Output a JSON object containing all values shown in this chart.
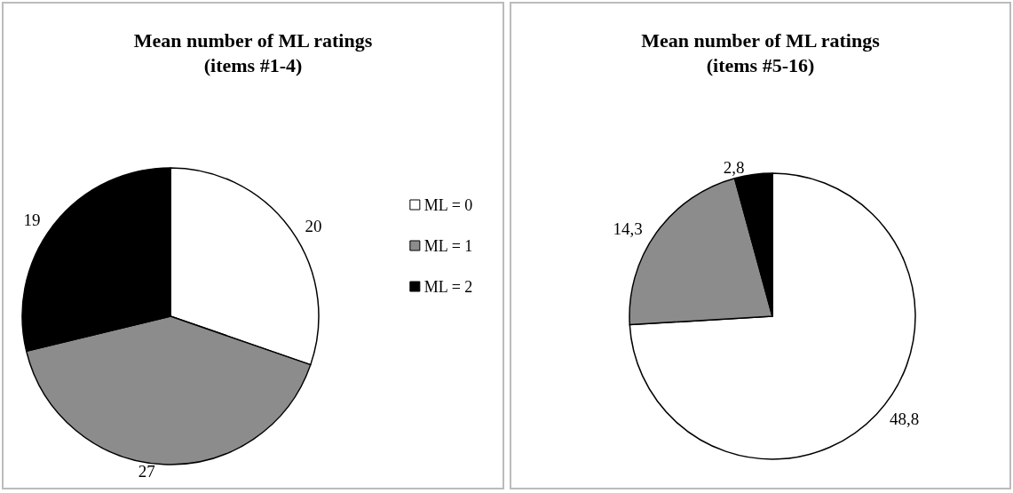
{
  "chart_data": [
    {
      "type": "pie",
      "title": "Mean number of ML ratings\n(items #1-4)",
      "categories": [
        "ML = 0",
        "ML = 1",
        "ML = 2"
      ],
      "values": [
        20,
        27,
        19
      ],
      "colors": [
        "#ffffff",
        "#8c8c8c",
        "#000000"
      ],
      "value_labels": [
        "20",
        "27",
        "19"
      ],
      "legend": "right"
    },
    {
      "type": "pie",
      "title": "Mean number of ML ratings\n(items #5-16)",
      "categories": [
        null,
        null,
        null
      ],
      "values": [
        48.8,
        14.3,
        2.8
      ],
      "colors": [
        "#ffffff",
        "#8c8c8c",
        "#000000"
      ],
      "value_labels": [
        "48,8",
        "14,3",
        "2,8"
      ],
      "legend": false
    }
  ]
}
